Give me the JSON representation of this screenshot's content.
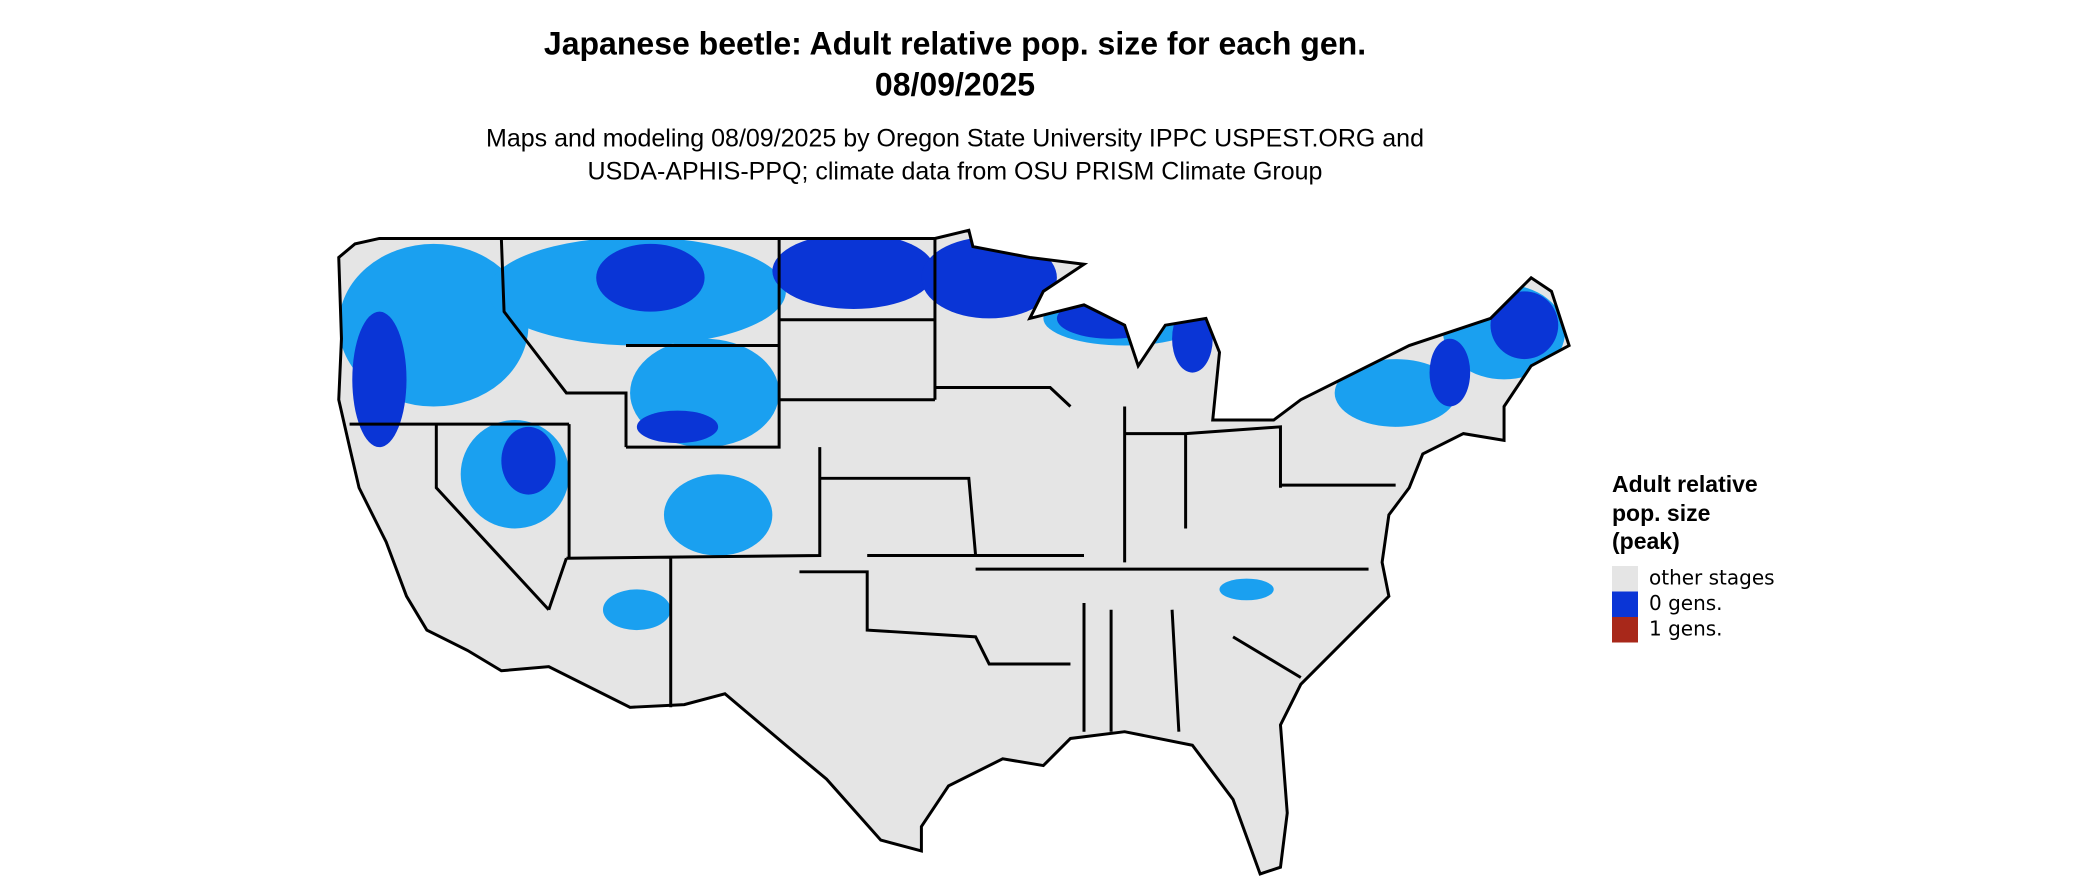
{
  "title": [
    "Japanese beetle: Adult relative pop. size for each gen.",
    "08/09/2025"
  ],
  "subtitle": [
    "Maps and modeling 08/09/2025 by Oregon State University IPPC USPEST.ORG and",
    "USDA-APHIS-PPQ; climate data from OSU PRISM Climate Group"
  ],
  "legend": {
    "title": [
      "Adult relative",
      "pop. size",
      "(peak)"
    ],
    "items": [
      {
        "label": "other stages",
        "color": "#e5e5e5"
      },
      {
        "label": "0 gens.",
        "color": "#0a35d6"
      },
      {
        "label": "1 gens.",
        "color": "#a8281a"
      }
    ]
  }
}
